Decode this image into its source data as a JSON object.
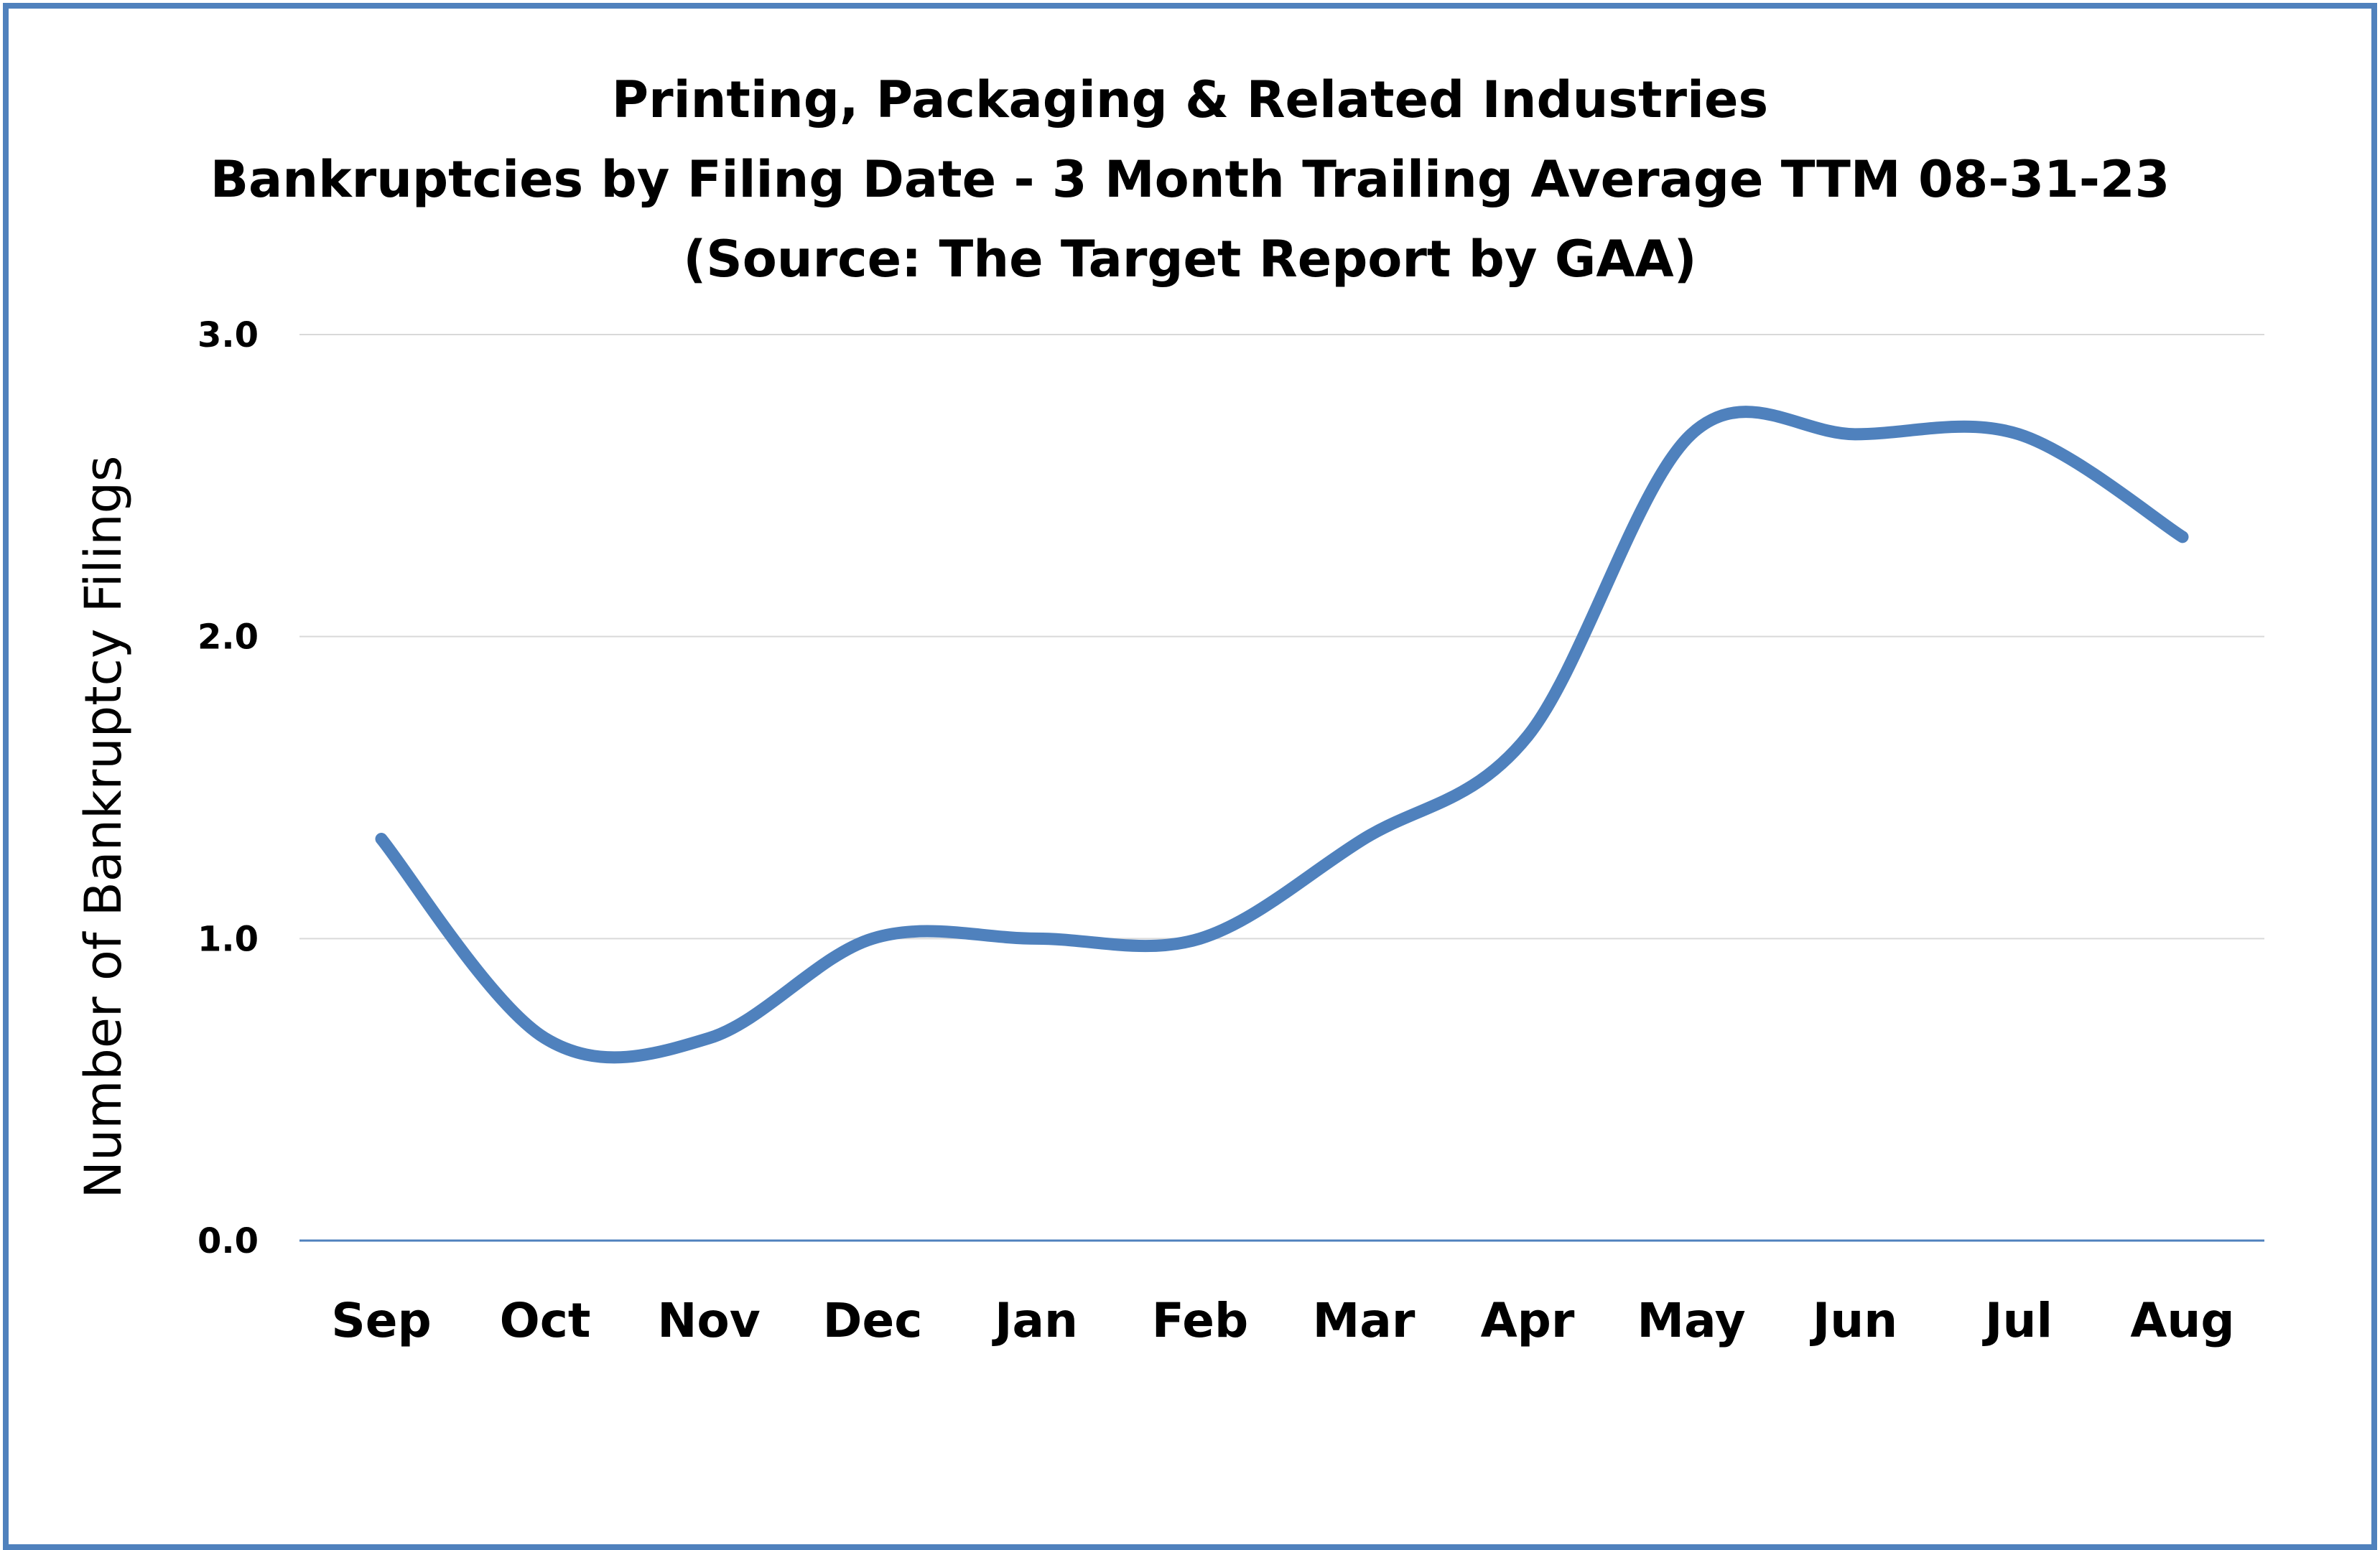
{
  "chart_data": {
    "type": "line",
    "title_lines": [
      "Printing, Packaging & Related Industries",
      "Bankruptcies by Filing Date - 3 Month Trailing Average TTM 08-31-23",
      "(Source: The Target Report by GAA)"
    ],
    "xlabel": "",
    "ylabel": "Number of Bankruptcy Filings",
    "categories": [
      "Sep",
      "Oct",
      "Nov",
      "Dec",
      "Jan",
      "Feb",
      "Mar",
      "Apr",
      "May",
      "Jun",
      "Jul",
      "Aug"
    ],
    "series": [
      {
        "values": [
          1.33,
          0.67,
          0.67,
          1.0,
          1.0,
          1.0,
          1.33,
          1.67,
          2.67,
          2.67,
          2.67,
          2.33
        ]
      }
    ],
    "ylim": [
      0,
      3
    ],
    "yticks": [
      "0.0",
      "1.0",
      "2.0",
      "3.0"
    ],
    "grid": true,
    "line_color": "#4f81bd",
    "smooth": true
  }
}
